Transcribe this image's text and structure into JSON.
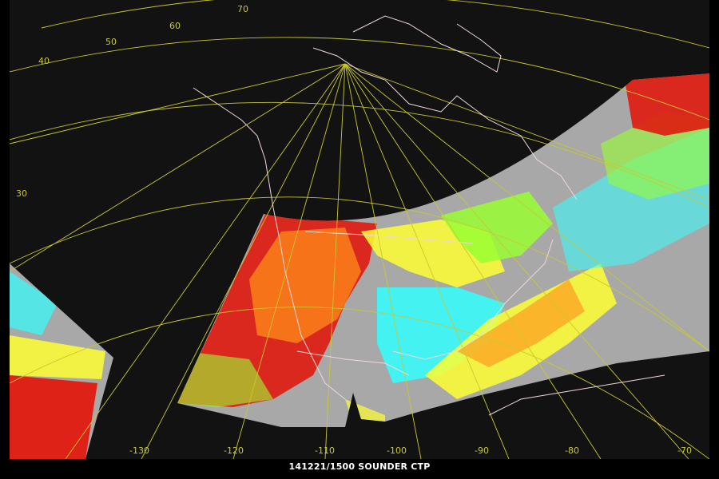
{
  "caption": "141221/1500 SOUNDER  CTP",
  "colors": {
    "background": "#121212",
    "grid": "#c8c832",
    "coastline": "#f0d8d8",
    "high": "#e01a0f",
    "mid_high": "#ff8c1a",
    "mid": "#ffff33",
    "mid_low": "#99ff33",
    "low": "#33ffff",
    "clear": "#a8a8a8"
  },
  "latitude_labels": [
    "70",
    "60",
    "50",
    "40",
    "30"
  ],
  "longitude_labels": [
    "-130",
    "-120",
    "-110",
    "-100",
    "-90",
    "-80",
    "-70"
  ]
}
